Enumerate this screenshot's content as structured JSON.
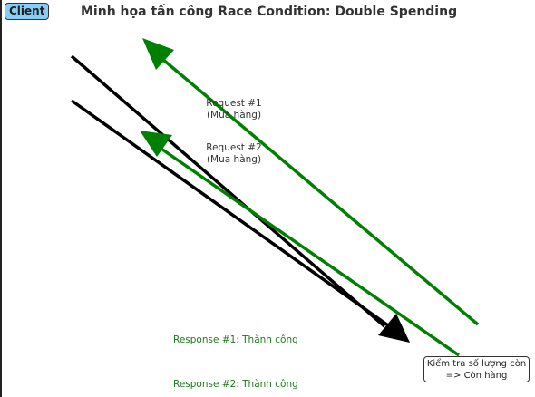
{
  "header": {
    "client_label": "Client",
    "title": "Minh họa tấn công Race Condition: Double Spending"
  },
  "requests": [
    {
      "line1": "Request #1",
      "line2": "(Mua hàng)"
    },
    {
      "line1": "Request #2",
      "line2": "(Mua hàng)"
    }
  ],
  "responses": [
    {
      "text": "Response #1: Thành công"
    },
    {
      "text": "Response #2: Thành công"
    }
  ],
  "server_check": {
    "line1": "Kiểm tra số lượng còn",
    "line2": "=> Còn hàng"
  },
  "colors": {
    "request_arrow": "#000000",
    "response_arrow": "#008000",
    "client_badge_fill": "#87cdf5",
    "response_text": "#1f7a1f"
  }
}
